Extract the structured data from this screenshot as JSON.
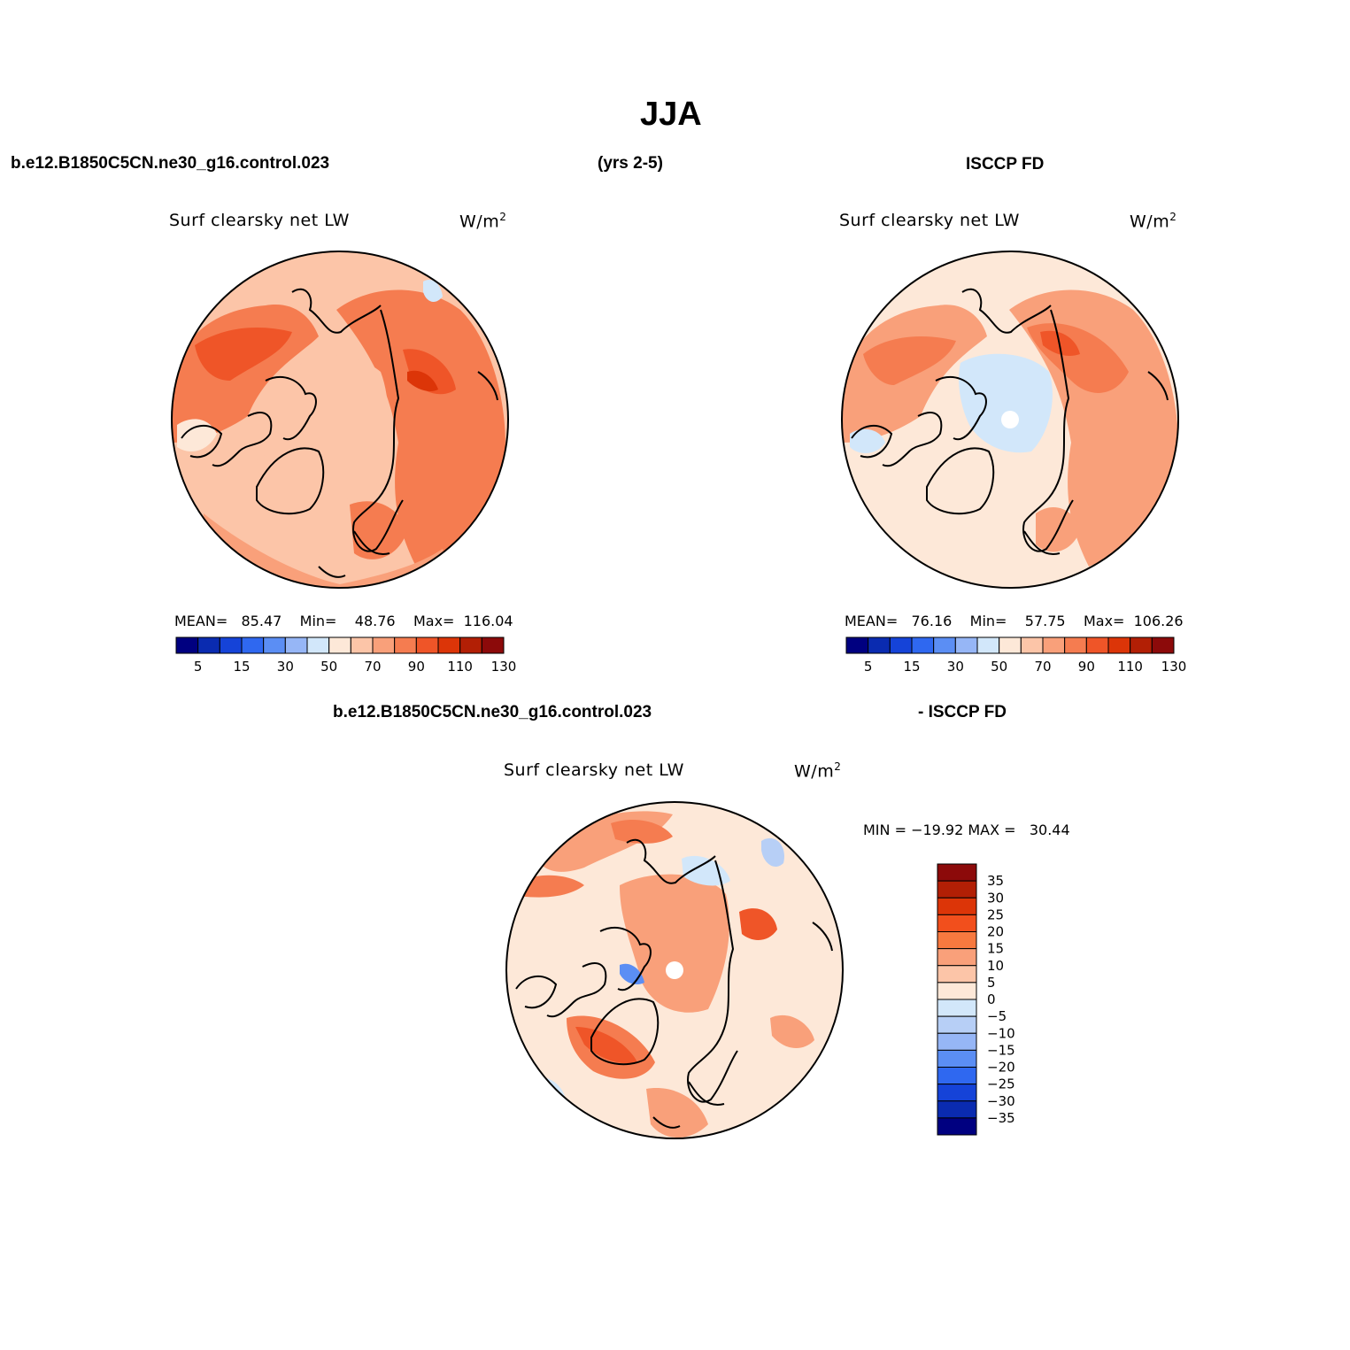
{
  "figure": {
    "title": "JJA",
    "top_left": "b.e12.B1850C5CN.ne30_g16.control.023",
    "top_mid": "(yrs 2-5)",
    "top_right": "ISCCP FD",
    "bottom_left": "b.e12.B1850C5CN.ne30_g16.control.023",
    "bottom_right": "- ISCCP FD"
  },
  "panels": [
    {
      "id": "model",
      "variable": "Surf clearsky net LW",
      "units": "W/m",
      "units_sup": "2",
      "mean_label": "MEAN=",
      "mean": "85.47",
      "min_label": "Min=",
      "min": "48.76",
      "max_label": "Max=",
      "max": "116.04"
    },
    {
      "id": "obs",
      "variable": "Surf clearsky net LW",
      "units": "W/m",
      "units_sup": "2",
      "mean_label": "MEAN=",
      "mean": "76.16",
      "min_label": "Min=",
      "min": "57.75",
      "max_label": "Max=",
      "max": "106.26"
    },
    {
      "id": "diff",
      "variable": "Surf clearsky net LW",
      "units": "W/m",
      "units_sup": "2",
      "minmax": "MIN = −19.92 MAX =   30.44"
    }
  ],
  "colorbar_abs": {
    "colors": [
      "#000080",
      "#0a2bb0",
      "#1543d8",
      "#2f68f0",
      "#5b8ef4",
      "#96b6f6",
      "#d2e7fa",
      "#fde8d8",
      "#fcc5a8",
      "#f9a07a",
      "#f57c50",
      "#ef5528",
      "#dc3508",
      "#b21f05",
      "#8c0a0a"
    ],
    "labels": [
      "5",
      "15",
      "30",
      "50",
      "70",
      "90",
      "110",
      "130"
    ]
  },
  "colorbar_diff": {
    "colors": [
      "#8c0a0a",
      "#b21f05",
      "#dc3508",
      "#f24f1c",
      "#f7793f",
      "#f9a07a",
      "#fcc5a8",
      "#fde8d8",
      "#d2e7fa",
      "#b7cff6",
      "#96b6f6",
      "#5b8ef4",
      "#2f68f0",
      "#1543d8",
      "#0a2bb0",
      "#000080"
    ],
    "labels": [
      "35",
      "30",
      "25",
      "20",
      "15",
      "10",
      "5",
      "0",
      "−5",
      "−10",
      "−15",
      "−20",
      "−25",
      "−30",
      "−35"
    ]
  }
}
